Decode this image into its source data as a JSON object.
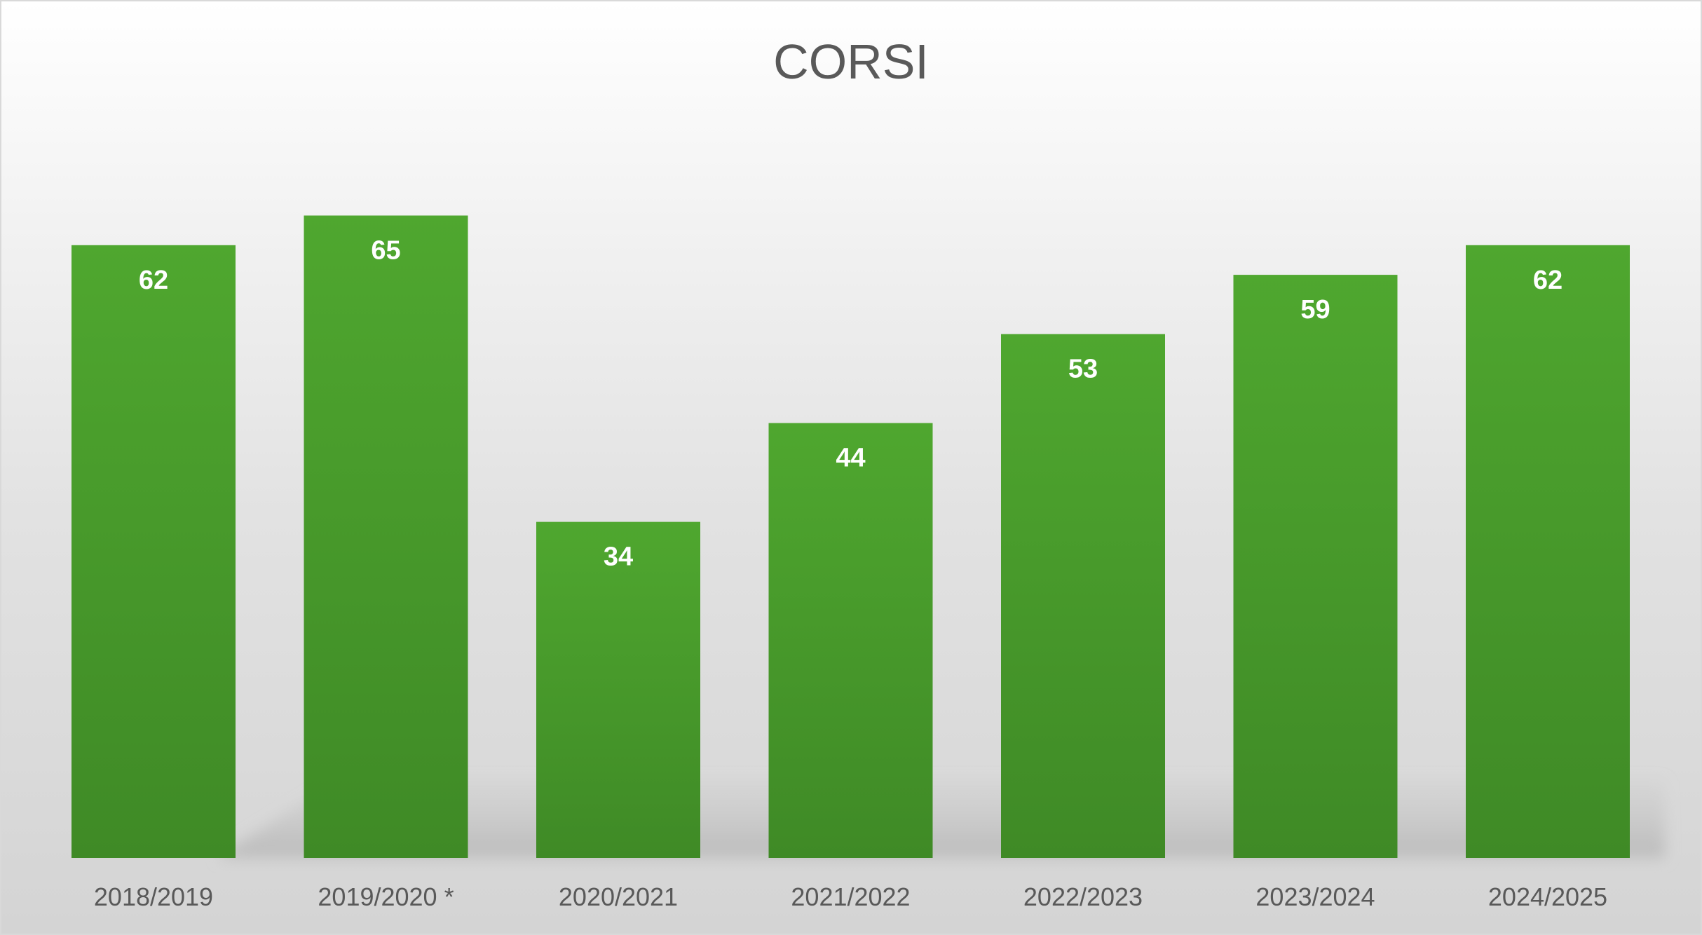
{
  "chart_data": {
    "type": "bar",
    "title": "CORSI",
    "categories": [
      "2018/2019",
      "2019/2020 *",
      "2020/2021",
      "2021/2022",
      "2022/2023",
      "2023/2024",
      "2024/2025"
    ],
    "values": [
      62,
      65,
      34,
      44,
      53,
      59,
      62
    ],
    "xlabel": "",
    "ylabel": "",
    "ylim": [
      0,
      70
    ],
    "grid": false,
    "legend": "none",
    "colors": {
      "bar_top": "#4fa72f",
      "bar_bottom": "#3f8a26",
      "label": "#ffffff",
      "text": "#595959"
    }
  }
}
